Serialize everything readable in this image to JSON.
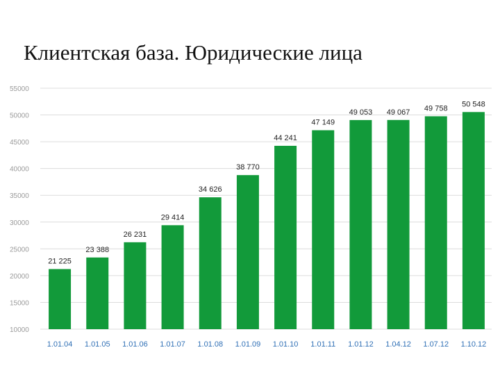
{
  "title": "Клиентская база. Юридические лица",
  "chart_data": {
    "type": "bar",
    "title": "",
    "xlabel": "",
    "ylabel": "",
    "ylim": [
      10000,
      55000
    ],
    "yticks": [
      10000,
      15000,
      20000,
      25000,
      30000,
      35000,
      40000,
      45000,
      50000,
      55000
    ],
    "ytick_labels": [
      "10000",
      "15000",
      "20000",
      "25000",
      "30000",
      "35000",
      "40000",
      "45000",
      "50000",
      "55000"
    ],
    "grid": true,
    "bar_color": "#129a3a",
    "categories": [
      "1.01.04",
      "1.01.05",
      "1.01.06",
      "1.01.07",
      "1.01.08",
      "1.01.09",
      "1.01.10",
      "1.01.11",
      "1.01.12",
      "1.04.12",
      "1.07.12",
      "1.10.12"
    ],
    "values": [
      21225,
      23388,
      26231,
      29414,
      34626,
      38770,
      44241,
      47149,
      49053,
      49067,
      49758,
      50548
    ],
    "value_labels": [
      "21 225",
      "23 388",
      "26 231",
      "29 414",
      "34 626",
      "38 770",
      "44 241",
      "47 149",
      "49 053",
      "49 067",
      "49 758",
      "50 548"
    ]
  }
}
